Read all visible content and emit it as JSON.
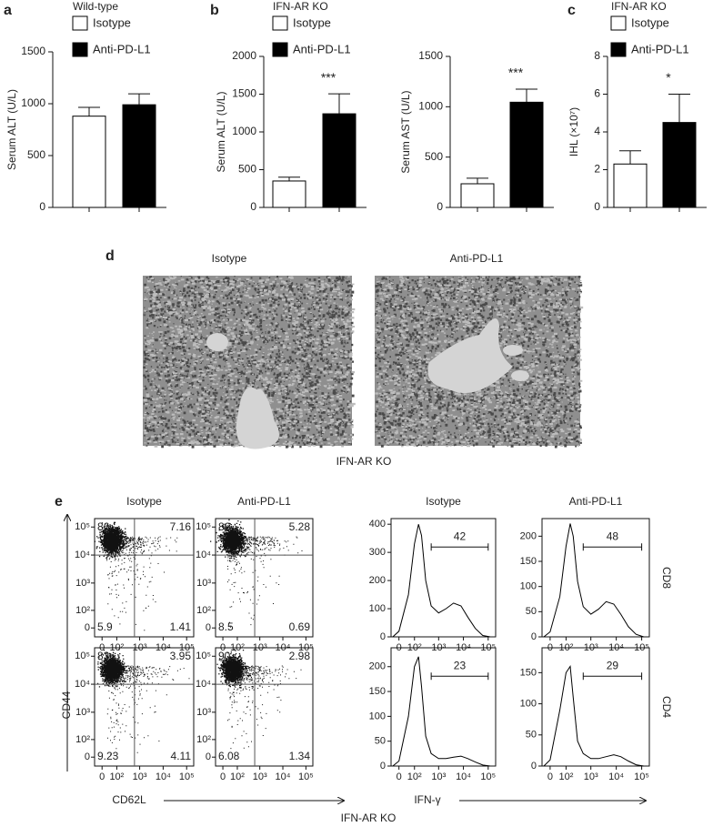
{
  "panel_labels": [
    "a",
    "b",
    "c",
    "d",
    "e"
  ],
  "chart_data": [
    {
      "type": "bar",
      "title": "Wild-type",
      "y_label": "Serum ALT (U/L)",
      "categories": [
        "Isotype",
        "Anti-PD-L1"
      ],
      "values": [
        880,
        990
      ],
      "errors": [
        85,
        105
      ],
      "colors": [
        "#ffffff",
        "#000000"
      ],
      "ylim": [
        0,
        1500
      ],
      "yticks": [
        0,
        500,
        1000,
        1500
      ],
      "legend": true
    },
    {
      "type": "bar",
      "title": "IFN-AR KO",
      "y_label": "Serum ALT (U/L)",
      "categories": [
        "Isotype",
        "Anti-PD-L1"
      ],
      "values": [
        350,
        1240
      ],
      "errors": [
        50,
        265
      ],
      "colors": [
        "#ffffff",
        "#000000"
      ],
      "ylim": [
        0,
        2000
      ],
      "yticks": [
        0,
        500,
        1000,
        1500,
        2000
      ],
      "legend": true,
      "annotation": "***"
    },
    {
      "type": "bar",
      "y_label": "Serum AST (U/L)",
      "categories": [
        "Isotype",
        "Anti-PD-L1"
      ],
      "values": [
        235,
        1045
      ],
      "errors": [
        55,
        130
      ],
      "colors": [
        "#ffffff",
        "#000000"
      ],
      "ylim": [
        0,
        1500
      ],
      "yticks": [
        0,
        500,
        1000,
        1500
      ],
      "legend": false,
      "annotation": "***"
    },
    {
      "type": "bar",
      "title": "IFN-AR KO",
      "y_label": "IHL (×10⁷)",
      "categories": [
        "Isotype",
        "Anti-PD-L1"
      ],
      "values": [
        2.3,
        4.5
      ],
      "errors": [
        0.7,
        1.5
      ],
      "colors": [
        "#ffffff",
        "#000000"
      ],
      "ylim": [
        0,
        8
      ],
      "yticks": [
        0,
        2,
        4,
        6,
        8
      ],
      "legend": true,
      "annotation": "*"
    },
    {
      "type": "flow",
      "title": "Isotype",
      "scale": "biexponential",
      "xlim": [
        -40,
        200000
      ],
      "ylim": [
        -40,
        200000
      ],
      "xticks": [
        0,
        {
          "value": 100,
          "label": "10²"
        },
        {
          "value": 1000,
          "label": "10³"
        },
        {
          "value": 10000,
          "label": "10⁴"
        },
        {
          "value": 100000,
          "label": "10⁵"
        }
      ],
      "yticks": [
        0,
        {
          "value": 100,
          "label": "10²"
        },
        {
          "value": 1000,
          "label": "10³"
        },
        {
          "value": 10000,
          "label": "10⁴"
        },
        {
          "value": 100000,
          "label": "10⁵"
        }
      ],
      "gates": [
        600,
        10000
      ],
      "quadrants": [
        86,
        7.16,
        5.9,
        1.41
      ]
    },
    {
      "type": "flow",
      "title": "Anti-PD-L1",
      "scale": "biexponential",
      "xlim": [
        -40,
        200000
      ],
      "ylim": [
        -40,
        200000
      ],
      "xticks": [
        0,
        {
          "value": 100,
          "label": "10²"
        },
        {
          "value": 1000,
          "label": "10³"
        },
        {
          "value": 10000,
          "label": "10⁴"
        },
        {
          "value": 100000,
          "label": "10⁵"
        }
      ],
      "yticks": [
        0,
        {
          "value": 100,
          "label": "10²"
        },
        {
          "value": 1000,
          "label": "10³"
        },
        {
          "value": 10000,
          "label": "10⁴"
        },
        {
          "value": 100000,
          "label": "10⁵"
        }
      ],
      "gates": [
        600,
        10000
      ],
      "quadrants": [
        86,
        5.28,
        8.5,
        0.69
      ]
    },
    {
      "type": "flow",
      "scale": "biexponential",
      "xlim": [
        -40,
        200000
      ],
      "ylim": [
        -40,
        200000
      ],
      "xticks": [
        0,
        {
          "value": 100,
          "label": "10²"
        },
        {
          "value": 1000,
          "label": "10³"
        },
        {
          "value": 10000,
          "label": "10⁴"
        },
        {
          "value": 100000,
          "label": "10⁵"
        }
      ],
      "yticks": [
        0,
        {
          "value": 100,
          "label": "10²"
        },
        {
          "value": 1000,
          "label": "10³"
        },
        {
          "value": 10000,
          "label": "10⁴"
        },
        {
          "value": 100000,
          "label": "10⁵"
        }
      ],
      "gates": [
        600,
        10000
      ],
      "quadrants": [
        83,
        3.95,
        9.23,
        4.11
      ]
    },
    {
      "type": "flow",
      "scale": "biexponential",
      "xlim": [
        -40,
        200000
      ],
      "ylim": [
        -40,
        200000
      ],
      "xticks": [
        0,
        {
          "value": 100,
          "label": "10²"
        },
        {
          "value": 1000,
          "label": "10³"
        },
        {
          "value": 10000,
          "label": "10⁴"
        },
        {
          "value": 100000,
          "label": "10⁵"
        }
      ],
      "yticks": [
        0,
        {
          "value": 100,
          "label": "10²"
        },
        {
          "value": 1000,
          "label": "10³"
        },
        {
          "value": 10000,
          "label": "10⁴"
        },
        {
          "value": 100000,
          "label": "10⁵"
        }
      ],
      "gates": [
        600,
        10000
      ],
      "quadrants": [
        90,
        2.98,
        6.08,
        1.34
      ]
    },
    {
      "type": "line",
      "title": "Isotype",
      "scale": "biexponential",
      "xlim": [
        -40,
        200000
      ],
      "xticks": [
        0,
        {
          "value": 100,
          "label": "10²"
        },
        {
          "value": 1000,
          "label": "10³"
        },
        {
          "value": 10000,
          "label": "10⁴"
        },
        {
          "value": 100000,
          "label": "10⁵"
        }
      ],
      "ylim": [
        0,
        420
      ],
      "yticks": [
        0,
        100,
        200,
        300,
        400
      ],
      "x": [
        -30,
        0,
        50,
        100,
        150,
        200,
        300,
        500,
        1000,
        2000,
        4000,
        8000,
        15000,
        30000,
        60000,
        120000
      ],
      "values": [
        0,
        20,
        150,
        330,
        400,
        360,
        200,
        110,
        85,
        100,
        120,
        110,
        70,
        30,
        5,
        0
      ],
      "color": "#000000",
      "gate": [
        500,
        100000
      ],
      "gate_label": 42
    },
    {
      "type": "line",
      "title": "Anti-PD-L1",
      "scale": "biexponential",
      "xlim": [
        -40,
        200000
      ],
      "xticks": [
        0,
        {
          "value": 100,
          "label": "10²"
        },
        {
          "value": 1000,
          "label": "10³"
        },
        {
          "value": 10000,
          "label": "10⁴"
        },
        {
          "value": 100000,
          "label": "10⁵"
        }
      ],
      "ylim": [
        0,
        235
      ],
      "yticks": [
        0,
        50,
        100,
        150,
        200
      ],
      "x": [
        -30,
        0,
        50,
        100,
        150,
        200,
        300,
        500,
        1000,
        2000,
        4000,
        8000,
        15000,
        30000,
        60000,
        120000
      ],
      "values": [
        0,
        10,
        80,
        180,
        225,
        200,
        110,
        60,
        45,
        55,
        70,
        65,
        45,
        20,
        5,
        0
      ],
      "color": "#000000",
      "gate": [
        500,
        100000
      ],
      "gate_label": 48
    },
    {
      "type": "line",
      "scale": "biexponential",
      "xlim": [
        -40,
        200000
      ],
      "xticks": [
        0,
        {
          "value": 100,
          "label": "10²"
        },
        {
          "value": 1000,
          "label": "10³"
        },
        {
          "value": 10000,
          "label": "10⁴"
        },
        {
          "value": 100000,
          "label": "10⁵"
        }
      ],
      "ylim": [
        0,
        238
      ],
      "yticks": [
        0,
        50,
        100,
        150,
        200
      ],
      "x": [
        -30,
        0,
        50,
        100,
        150,
        200,
        300,
        500,
        1000,
        2000,
        4000,
        8000,
        15000,
        30000,
        60000,
        120000
      ],
      "values": [
        0,
        10,
        100,
        200,
        220,
        160,
        60,
        25,
        15,
        15,
        18,
        20,
        15,
        8,
        2,
        0
      ],
      "color": "#000000",
      "gate": [
        500,
        100000
      ],
      "gate_label": 23
    },
    {
      "type": "line",
      "scale": "biexponential",
      "xlim": [
        -40,
        200000
      ],
      "xticks": [
        0,
        {
          "value": 100,
          "label": "10²"
        },
        {
          "value": 1000,
          "label": "10³"
        },
        {
          "value": 10000,
          "label": "10⁴"
        },
        {
          "value": 100000,
          "label": "10⁵"
        }
      ],
      "ylim": [
        0,
        190
      ],
      "yticks": [
        0,
        50,
        100,
        150
      ],
      "x": [
        -30,
        0,
        50,
        100,
        150,
        200,
        300,
        500,
        1000,
        2000,
        4000,
        8000,
        15000,
        30000,
        60000,
        120000
      ],
      "values": [
        0,
        10,
        90,
        150,
        160,
        110,
        40,
        20,
        12,
        12,
        15,
        18,
        15,
        8,
        2,
        0
      ],
      "color": "#000000",
      "gate": [
        500,
        100000
      ],
      "gate_label": 29
    }
  ],
  "panel_d": {
    "titles": [
      "Isotype",
      "Anti-PD-L1"
    ],
    "caption": "IFN-AR KO"
  },
  "panel_e": {
    "y_label": "CD44",
    "x_label": "CD62L",
    "hist_x_label": "IFN-γ",
    "row_labels": [
      "CD8",
      "CD4"
    ],
    "caption": "IFN-AR KO"
  }
}
